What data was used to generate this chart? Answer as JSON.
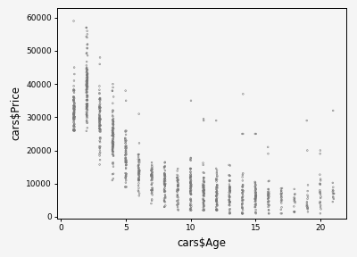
{
  "title": "",
  "xlabel": "cars$Age",
  "ylabel": "cars$Price",
  "xlim": [
    -0.3,
    22
  ],
  "ylim": [
    -500,
    63000
  ],
  "xticks": [
    0,
    5,
    10,
    15,
    20
  ],
  "yticks": [
    0,
    10000,
    20000,
    30000,
    40000,
    50000,
    60000
  ],
  "ytick_labels": [
    "0",
    "10000",
    "20000",
    "30000",
    "40000",
    "50000",
    "60000"
  ],
  "marker": "o",
  "marker_size": 1.5,
  "marker_facecolor": "none",
  "marker_edgecolor": "#777777",
  "marker_linewidth": 0.4,
  "bg_color": "#f5f5f5",
  "seed": 42,
  "ages": [
    1,
    2,
    3,
    4,
    5,
    6,
    7,
    8,
    9,
    10,
    11,
    12,
    13,
    14,
    15,
    16,
    17,
    18,
    19,
    20,
    21
  ]
}
